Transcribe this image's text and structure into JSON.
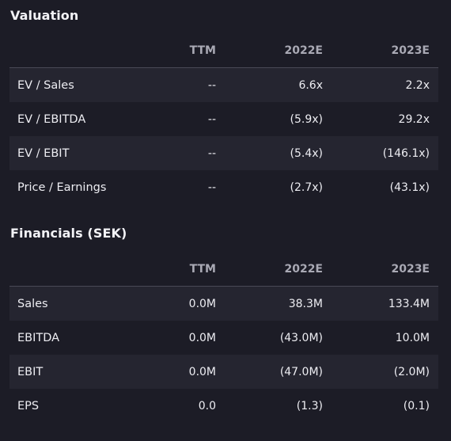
{
  "valuation": {
    "title": "Valuation",
    "headers": [
      "TTM",
      "2022E",
      "2023E"
    ],
    "rows": [
      {
        "label": "EV / Sales",
        "values": [
          "--",
          "6.6x",
          "2.2x"
        ]
      },
      {
        "label": "EV / EBITDA",
        "values": [
          "--",
          "(5.9x)",
          "29.2x"
        ]
      },
      {
        "label": "EV / EBIT",
        "values": [
          "--",
          "(5.4x)",
          "(146.1x)"
        ]
      },
      {
        "label": "Price / Earnings",
        "values": [
          "--",
          "(2.7x)",
          "(43.1x)"
        ]
      }
    ]
  },
  "financials": {
    "title": "Financials (SEK)",
    "headers": [
      "TTM",
      "2022E",
      "2023E"
    ],
    "rows": [
      {
        "label": "Sales",
        "values": [
          "0.0M",
          "38.3M",
          "133.4M"
        ]
      },
      {
        "label": "EBITDA",
        "values": [
          "0.0M",
          "(43.0M)",
          "10.0M"
        ]
      },
      {
        "label": "EBIT",
        "values": [
          "0.0M",
          "(47.0M)",
          "(2.0M)"
        ]
      },
      {
        "label": "EPS",
        "values": [
          "0.0",
          "(1.3)",
          "(0.1)"
        ]
      }
    ]
  }
}
